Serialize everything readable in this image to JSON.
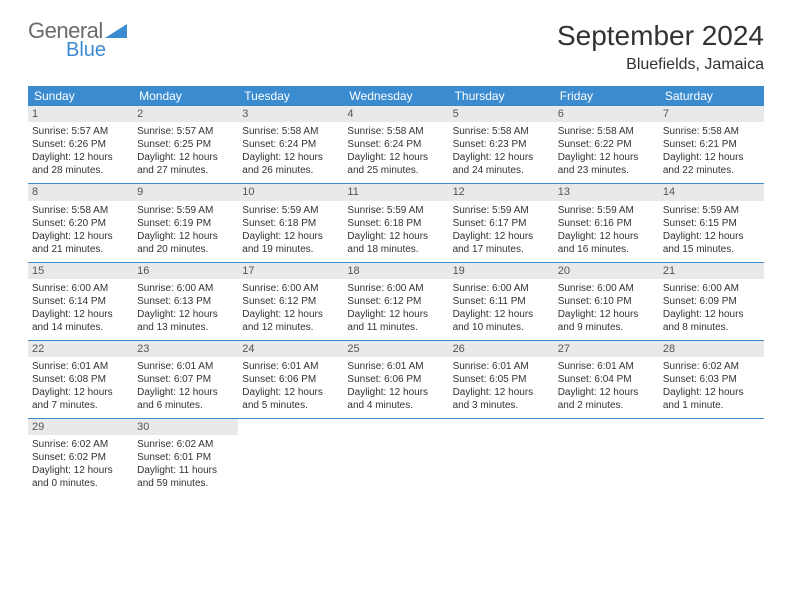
{
  "logo": {
    "text_general": "General",
    "text_blue": "Blue",
    "tri_color": "#3b8bd0"
  },
  "title": "September 2024",
  "location": "Bluefields, Jamaica",
  "day_headers": [
    "Sunday",
    "Monday",
    "Tuesday",
    "Wednesday",
    "Thursday",
    "Friday",
    "Saturday"
  ],
  "colors": {
    "header_bg": "#3b8bd0",
    "header_fg": "#ffffff",
    "daynum_bg": "#e9e9e9",
    "rule": "#3b8bd0",
    "text": "#333333"
  },
  "weeks": [
    [
      {
        "n": "1",
        "sr": "Sunrise: 5:57 AM",
        "ss": "Sunset: 6:26 PM",
        "dl": "Daylight: 12 hours and 28 minutes."
      },
      {
        "n": "2",
        "sr": "Sunrise: 5:57 AM",
        "ss": "Sunset: 6:25 PM",
        "dl": "Daylight: 12 hours and 27 minutes."
      },
      {
        "n": "3",
        "sr": "Sunrise: 5:58 AM",
        "ss": "Sunset: 6:24 PM",
        "dl": "Daylight: 12 hours and 26 minutes."
      },
      {
        "n": "4",
        "sr": "Sunrise: 5:58 AM",
        "ss": "Sunset: 6:24 PM",
        "dl": "Daylight: 12 hours and 25 minutes."
      },
      {
        "n": "5",
        "sr": "Sunrise: 5:58 AM",
        "ss": "Sunset: 6:23 PM",
        "dl": "Daylight: 12 hours and 24 minutes."
      },
      {
        "n": "6",
        "sr": "Sunrise: 5:58 AM",
        "ss": "Sunset: 6:22 PM",
        "dl": "Daylight: 12 hours and 23 minutes."
      },
      {
        "n": "7",
        "sr": "Sunrise: 5:58 AM",
        "ss": "Sunset: 6:21 PM",
        "dl": "Daylight: 12 hours and 22 minutes."
      }
    ],
    [
      {
        "n": "8",
        "sr": "Sunrise: 5:58 AM",
        "ss": "Sunset: 6:20 PM",
        "dl": "Daylight: 12 hours and 21 minutes."
      },
      {
        "n": "9",
        "sr": "Sunrise: 5:59 AM",
        "ss": "Sunset: 6:19 PM",
        "dl": "Daylight: 12 hours and 20 minutes."
      },
      {
        "n": "10",
        "sr": "Sunrise: 5:59 AM",
        "ss": "Sunset: 6:18 PM",
        "dl": "Daylight: 12 hours and 19 minutes."
      },
      {
        "n": "11",
        "sr": "Sunrise: 5:59 AM",
        "ss": "Sunset: 6:18 PM",
        "dl": "Daylight: 12 hours and 18 minutes."
      },
      {
        "n": "12",
        "sr": "Sunrise: 5:59 AM",
        "ss": "Sunset: 6:17 PM",
        "dl": "Daylight: 12 hours and 17 minutes."
      },
      {
        "n": "13",
        "sr": "Sunrise: 5:59 AM",
        "ss": "Sunset: 6:16 PM",
        "dl": "Daylight: 12 hours and 16 minutes."
      },
      {
        "n": "14",
        "sr": "Sunrise: 5:59 AM",
        "ss": "Sunset: 6:15 PM",
        "dl": "Daylight: 12 hours and 15 minutes."
      }
    ],
    [
      {
        "n": "15",
        "sr": "Sunrise: 6:00 AM",
        "ss": "Sunset: 6:14 PM",
        "dl": "Daylight: 12 hours and 14 minutes."
      },
      {
        "n": "16",
        "sr": "Sunrise: 6:00 AM",
        "ss": "Sunset: 6:13 PM",
        "dl": "Daylight: 12 hours and 13 minutes."
      },
      {
        "n": "17",
        "sr": "Sunrise: 6:00 AM",
        "ss": "Sunset: 6:12 PM",
        "dl": "Daylight: 12 hours and 12 minutes."
      },
      {
        "n": "18",
        "sr": "Sunrise: 6:00 AM",
        "ss": "Sunset: 6:12 PM",
        "dl": "Daylight: 12 hours and 11 minutes."
      },
      {
        "n": "19",
        "sr": "Sunrise: 6:00 AM",
        "ss": "Sunset: 6:11 PM",
        "dl": "Daylight: 12 hours and 10 minutes."
      },
      {
        "n": "20",
        "sr": "Sunrise: 6:00 AM",
        "ss": "Sunset: 6:10 PM",
        "dl": "Daylight: 12 hours and 9 minutes."
      },
      {
        "n": "21",
        "sr": "Sunrise: 6:00 AM",
        "ss": "Sunset: 6:09 PM",
        "dl": "Daylight: 12 hours and 8 minutes."
      }
    ],
    [
      {
        "n": "22",
        "sr": "Sunrise: 6:01 AM",
        "ss": "Sunset: 6:08 PM",
        "dl": "Daylight: 12 hours and 7 minutes."
      },
      {
        "n": "23",
        "sr": "Sunrise: 6:01 AM",
        "ss": "Sunset: 6:07 PM",
        "dl": "Daylight: 12 hours and 6 minutes."
      },
      {
        "n": "24",
        "sr": "Sunrise: 6:01 AM",
        "ss": "Sunset: 6:06 PM",
        "dl": "Daylight: 12 hours and 5 minutes."
      },
      {
        "n": "25",
        "sr": "Sunrise: 6:01 AM",
        "ss": "Sunset: 6:06 PM",
        "dl": "Daylight: 12 hours and 4 minutes."
      },
      {
        "n": "26",
        "sr": "Sunrise: 6:01 AM",
        "ss": "Sunset: 6:05 PM",
        "dl": "Daylight: 12 hours and 3 minutes."
      },
      {
        "n": "27",
        "sr": "Sunrise: 6:01 AM",
        "ss": "Sunset: 6:04 PM",
        "dl": "Daylight: 12 hours and 2 minutes."
      },
      {
        "n": "28",
        "sr": "Sunrise: 6:02 AM",
        "ss": "Sunset: 6:03 PM",
        "dl": "Daylight: 12 hours and 1 minute."
      }
    ],
    [
      {
        "n": "29",
        "sr": "Sunrise: 6:02 AM",
        "ss": "Sunset: 6:02 PM",
        "dl": "Daylight: 12 hours and 0 minutes."
      },
      {
        "n": "30",
        "sr": "Sunrise: 6:02 AM",
        "ss": "Sunset: 6:01 PM",
        "dl": "Daylight: 11 hours and 59 minutes."
      },
      null,
      null,
      null,
      null,
      null
    ]
  ]
}
